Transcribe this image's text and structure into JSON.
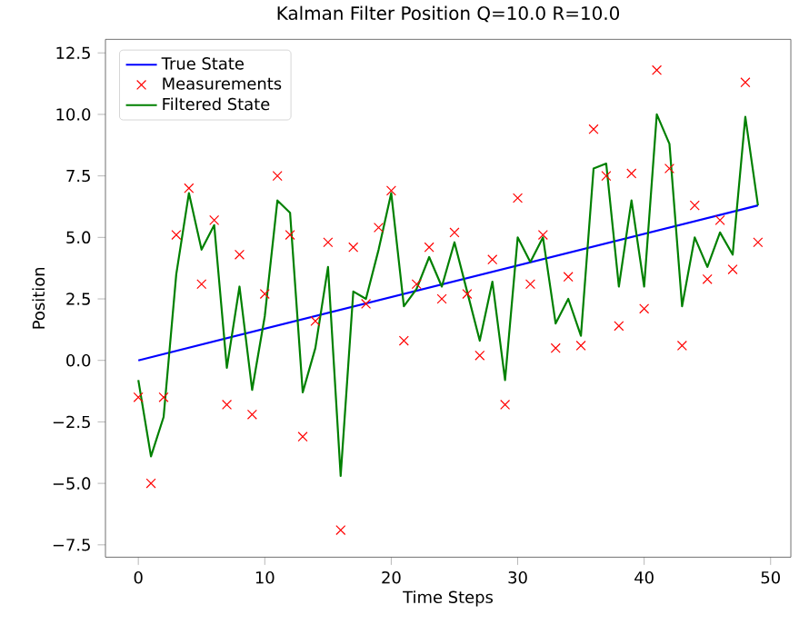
{
  "chart_data": {
    "type": "line",
    "title": "Kalman Filter Position Q=10.0 R=10.0",
    "xlabel": "Time Steps",
    "ylabel": "Position",
    "legend": "top left",
    "grid": false,
    "xlim": [
      -2.6,
      51.6
    ],
    "ylim": [
      -8.0,
      13.05
    ],
    "xticks": [
      0,
      10,
      20,
      30,
      40,
      50
    ],
    "yticks": [
      {
        "value": -7.5,
        "label": "−7.5"
      },
      {
        "value": -5,
        "label": "−5.0"
      },
      {
        "value": -2.5,
        "label": "−2.5"
      },
      {
        "value": 0,
        "label": "0.0"
      },
      {
        "value": 2.5,
        "label": "2.5"
      },
      {
        "value": 5,
        "label": "5.0"
      },
      {
        "value": 7.5,
        "label": "7.5"
      },
      {
        "value": 10,
        "label": "10.0"
      },
      {
        "value": 12.5,
        "label": "12.5"
      }
    ],
    "series": [
      {
        "name": "True State",
        "color": "#0000ff",
        "marker": "none",
        "x": [
          0,
          49
        ],
        "values": [
          0,
          6.3
        ]
      },
      {
        "name": "Measurements",
        "type": "scatter",
        "color": "#ff0000",
        "marker": "cross",
        "x": [
          0,
          1,
          2,
          3,
          4,
          5,
          6,
          7,
          8,
          9,
          10,
          11,
          12,
          13,
          14,
          15,
          16,
          17,
          18,
          19,
          20,
          21,
          22,
          23,
          24,
          25,
          26,
          27,
          28,
          29,
          30,
          31,
          32,
          33,
          34,
          35,
          36,
          37,
          38,
          39,
          40,
          41,
          42,
          43,
          44,
          45,
          46,
          47,
          48,
          49
        ],
        "values": [
          -1.5,
          -5.0,
          -1.5,
          5.1,
          7.0,
          3.1,
          5.7,
          -1.8,
          4.3,
          -2.2,
          2.7,
          7.5,
          5.1,
          -3.1,
          1.6,
          4.8,
          -6.9,
          4.6,
          2.3,
          5.4,
          6.9,
          0.8,
          3.1,
          4.6,
          2.5,
          5.2,
          2.7,
          0.2,
          4.1,
          -1.8,
          6.6,
          3.1,
          5.1,
          0.5,
          3.4,
          0.6,
          9.4,
          7.5,
          1.4,
          7.6,
          2.1,
          11.8,
          7.8,
          0.6,
          6.3,
          3.3,
          5.7,
          3.7,
          11.3,
          4.8
        ]
      },
      {
        "name": "Filtered State",
        "color": "#008000",
        "marker": "none",
        "x": [
          0,
          1,
          2,
          3,
          4,
          5,
          6,
          7,
          8,
          9,
          10,
          11,
          12,
          13,
          14,
          15,
          16,
          17,
          18,
          19,
          20,
          21,
          22,
          23,
          24,
          25,
          26,
          27,
          28,
          29,
          30,
          31,
          32,
          33,
          34,
          35,
          36,
          37,
          38,
          39,
          40,
          41,
          42,
          43,
          44,
          45,
          46,
          47,
          48,
          49
        ],
        "values": [
          -0.8,
          -3.9,
          -2.3,
          3.5,
          6.8,
          4.5,
          5.5,
          -0.3,
          3.0,
          -1.2,
          1.8,
          6.5,
          6.0,
          -1.3,
          0.5,
          3.8,
          -4.7,
          2.8,
          2.5,
          4.5,
          6.8,
          2.2,
          2.9,
          4.2,
          3.0,
          4.8,
          2.8,
          0.8,
          3.2,
          -0.8,
          5.0,
          4.0,
          5.0,
          1.5,
          2.5,
          1.0,
          7.8,
          8.0,
          3.0,
          6.5,
          3.0,
          10.0,
          8.8,
          2.2,
          5.0,
          3.8,
          5.2,
          4.3,
          9.9,
          6.3
        ]
      }
    ]
  }
}
